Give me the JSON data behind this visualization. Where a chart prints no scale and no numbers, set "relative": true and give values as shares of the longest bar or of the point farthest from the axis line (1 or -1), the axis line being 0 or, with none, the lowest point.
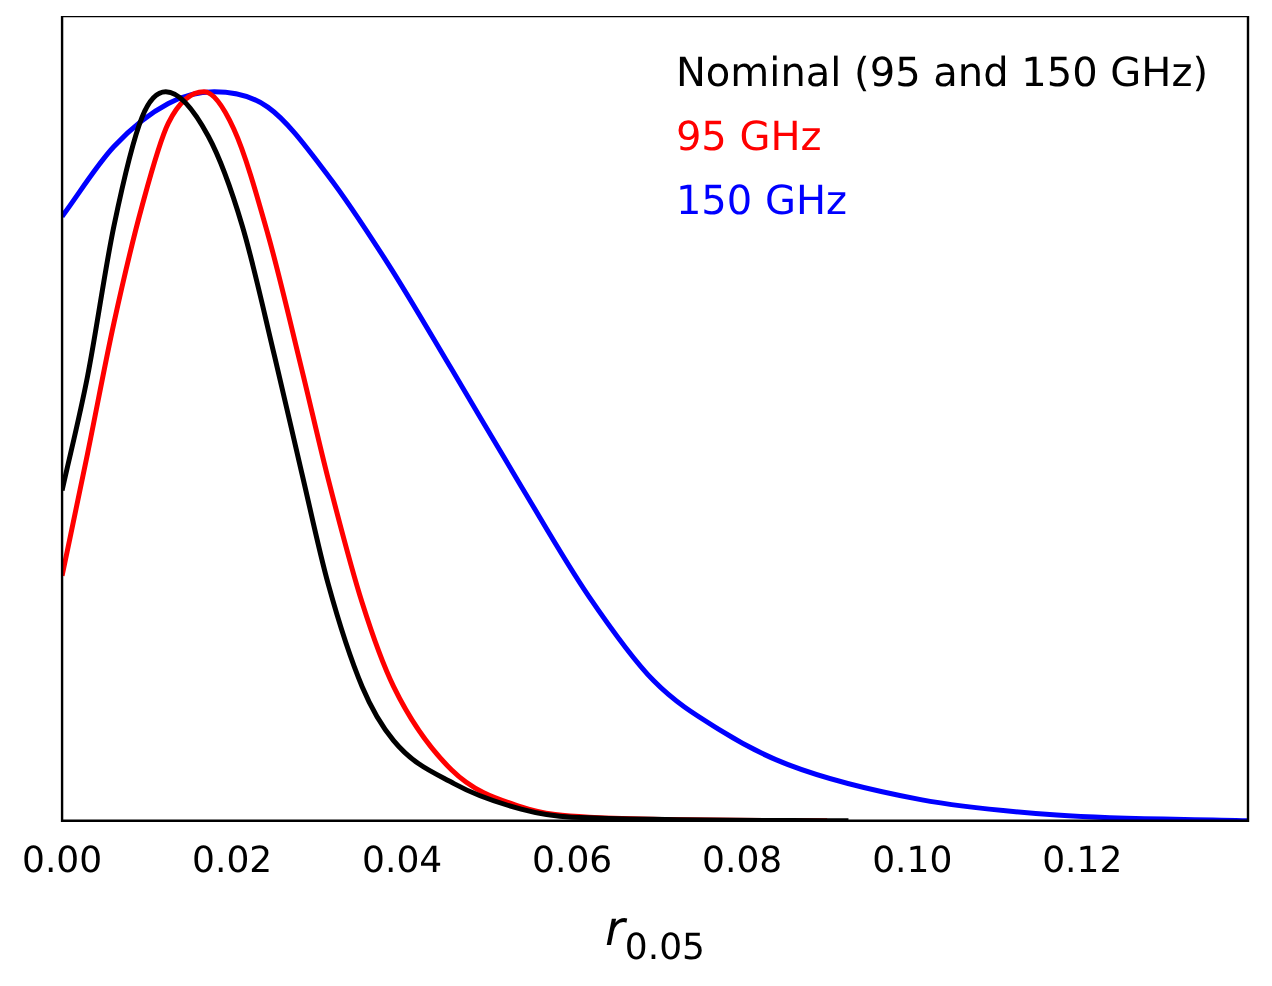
{
  "chart_data": {
    "type": "line",
    "relative": true,
    "xlabel": "r$_{0.05}$",
    "xlim": [
      0,
      0.1395
    ],
    "xticks": [
      {
        "value": 0,
        "label": "0.00"
      },
      0.02,
      0.04,
      0.06,
      0.08,
      {
        "value": 0.1,
        "label": "0.10"
      },
      0.12
    ],
    "legend": "top right",
    "grid": false,
    "marker": "none",
    "line_style": "solid",
    "series": [
      {
        "name": "Nominal (95 and 150 GHz)",
        "color": "#000000",
        "x": [
          0,
          0.003,
          0.0061,
          0.0094,
          0.0122,
          0.0172,
          0.0212,
          0.025,
          0.0282,
          0.0313,
          0.0353,
          0.039,
          0.0461,
          0.054,
          0.06,
          0.0925
        ],
        "values": [
          0.453,
          0.61,
          0.816,
          0.965,
          1,
          0.939,
          0.816,
          0.637,
          0.477,
          0.325,
          0.184,
          0.11,
          0.051,
          0.016,
          0.005,
          0
        ]
      },
      {
        "name": "95 GHz",
        "color": "#ff0000",
        "x": [
          0,
          0.003,
          0.0061,
          0.0094,
          0.0125,
          0.0167,
          0.0202,
          0.0242,
          0.0282,
          0.0313,
          0.0353,
          0.039,
          0.0458,
          0.054,
          0.062,
          0.09
        ],
        "values": [
          0.336,
          0.504,
          0.683,
          0.843,
          0.957,
          1,
          0.949,
          0.805,
          0.619,
          0.469,
          0.299,
          0.184,
          0.07,
          0.019,
          0.005,
          0
        ]
      },
      {
        "name": "150 GHz",
        "color": "#0000ff",
        "x": [
          0,
          0.0061,
          0.0125,
          0.0179,
          0.0242,
          0.0313,
          0.0384,
          0.0458,
          0.054,
          0.0619,
          0.0696,
          0.0776,
          0.0854,
          0.101,
          0.117,
          0.1395
        ],
        "values": [
          0.829,
          0.925,
          0.984,
          1,
          0.979,
          0.885,
          0.763,
          0.62,
          0.459,
          0.309,
          0.192,
          0.123,
          0.077,
          0.029,
          0.008,
          0
        ]
      }
    ]
  }
}
